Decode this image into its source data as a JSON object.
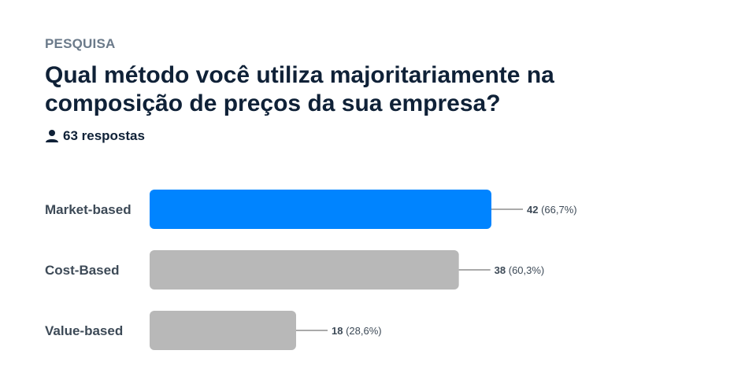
{
  "header": {
    "kicker": "PESQUISA",
    "title": "Qual método você utiliza majoritariamente na composição de preços da sua empresa?",
    "responses": "63 respostas",
    "responses_icon": "person-icon"
  },
  "colors": {
    "highlight": "#0084ff",
    "bar": "#b8b8b8",
    "leader": "#555555"
  },
  "chart_data": {
    "type": "bar",
    "orientation": "horizontal",
    "categories": [
      "Market-based",
      "Cost-Based",
      "Value-based"
    ],
    "values": [
      42,
      38,
      18
    ],
    "percent_labels": [
      "(66,7%)",
      "(60,3%)",
      "(28,6%)"
    ],
    "highlighted_index": 0,
    "xlim": [
      0,
      42
    ]
  }
}
